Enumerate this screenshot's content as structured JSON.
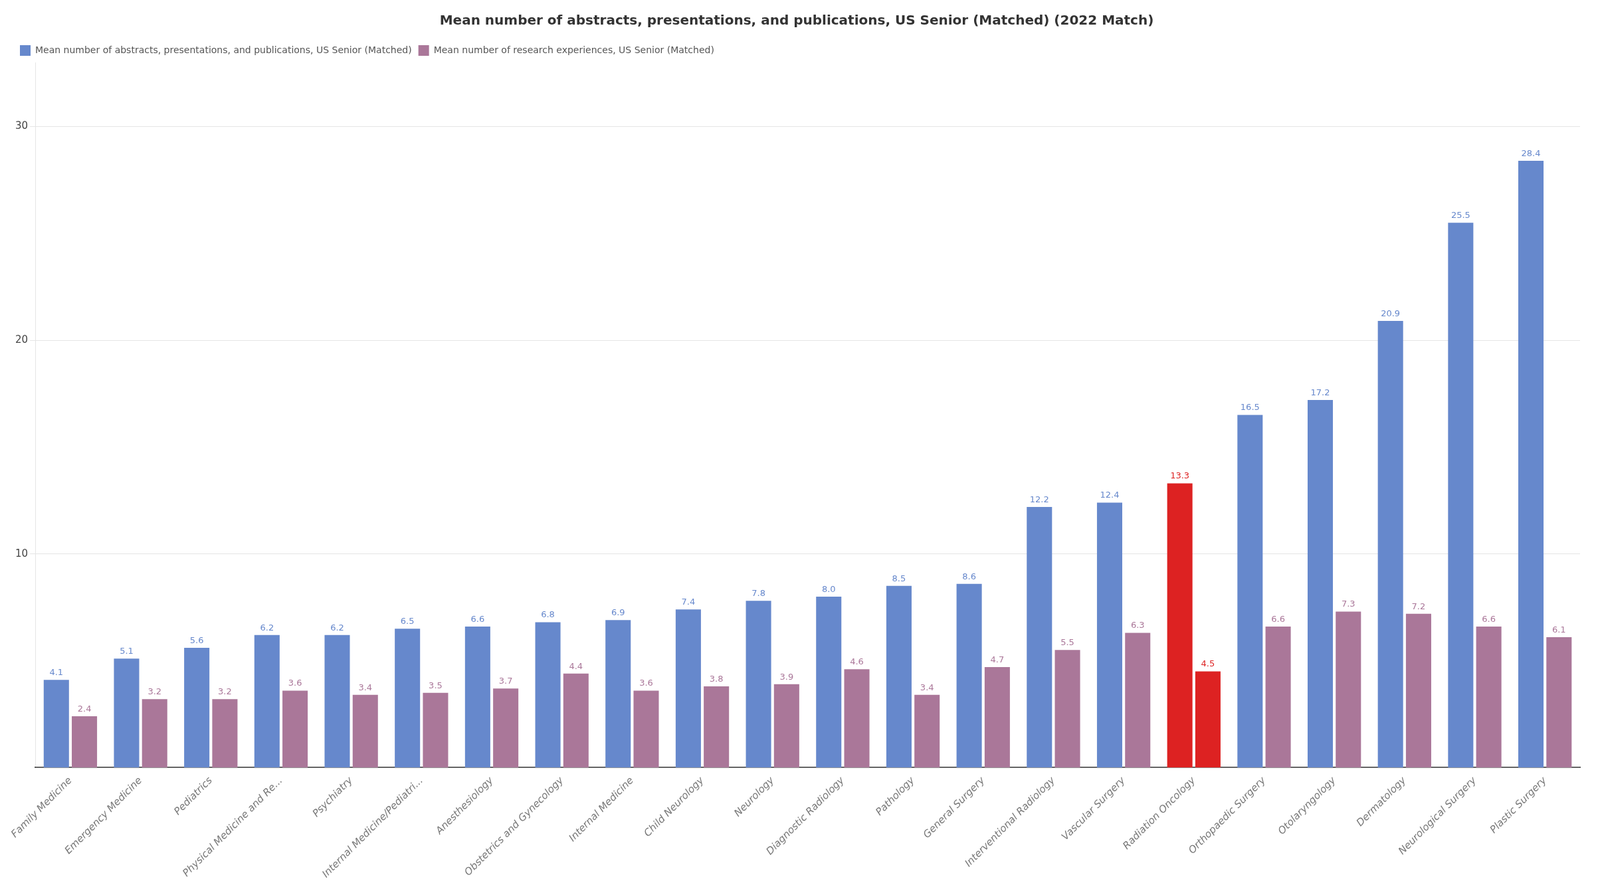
{
  "chart_data": {
    "type": "bar",
    "title": "Mean number of abstracts, presentations, and publications, US Senior (Matched) (2022 Match)",
    "categories": [
      "Family Medicine",
      "Emergency Medicine",
      "Pediatrics",
      "Physical Medicine and Re...",
      "Psychiatry",
      "Internal Medicine/Pediatri...",
      "Anesthesiology",
      "Obstetrics and Gynecology",
      "Internal Medicine",
      "Child Neurology",
      "Neurology",
      "Diagnostic Radiology",
      "Pathology",
      "General Surgery",
      "Interventional Radiology",
      "Vascular Surgery",
      "Radiation Oncology",
      "Orthopaedic Surgery",
      "Otolaryngology",
      "Dermatology",
      "Neurological Surgery",
      "Plastic Surgery"
    ],
    "series": [
      {
        "name": "Mean number of abstracts, presentations, and publications, US Senior (Matched)",
        "color": "#6688CC",
        "colors": [
          "#6688CC",
          "#6688CC",
          "#6688CC",
          "#6688CC",
          "#6688CC",
          "#6688CC",
          "#6688CC",
          "#6688CC",
          "#6688CC",
          "#6688CC",
          "#6688CC",
          "#6688CC",
          "#6688CC",
          "#6688CC",
          "#6688CC",
          "#6688CC",
          "#DD2222",
          "#6688CC",
          "#6688CC",
          "#6688CC",
          "#6688CC",
          "#6688CC"
        ],
        "values": [
          4.1,
          5.1,
          5.6,
          6.2,
          6.2,
          6.5,
          6.6,
          6.8,
          6.9,
          7.4,
          7.8,
          8.0,
          8.5,
          8.6,
          12.2,
          12.4,
          13.3,
          16.5,
          17.2,
          20.9,
          25.5,
          28.4
        ],
        "value_labels": [
          "4.1",
          "5.1",
          "5.6",
          "6.2",
          "6.2",
          "6.5",
          "6.6",
          "6.8",
          "6.9",
          "7.4",
          "7.8",
          "8.0",
          "8.5",
          "8.6",
          "12.2",
          "12.4",
          "13.3",
          "16.5",
          "17.2",
          "20.9",
          "25.5",
          "28.4"
        ]
      },
      {
        "name": "Mean number of research experiences, US Senior (Matched)",
        "color": "#AA7799",
        "colors": [
          "#AA7799",
          "#AA7799",
          "#AA7799",
          "#AA7799",
          "#AA7799",
          "#AA7799",
          "#AA7799",
          "#AA7799",
          "#AA7799",
          "#AA7799",
          "#AA7799",
          "#AA7799",
          "#AA7799",
          "#AA7799",
          "#AA7799",
          "#AA7799",
          "#DD2222",
          "#AA7799",
          "#AA7799",
          "#AA7799",
          "#AA7799",
          "#AA7799"
        ],
        "values": [
          2.4,
          3.2,
          3.2,
          3.6,
          3.4,
          3.5,
          3.7,
          4.4,
          3.6,
          3.8,
          3.9,
          4.6,
          3.4,
          4.7,
          5.5,
          6.3,
          4.5,
          6.6,
          7.3,
          7.2,
          6.6,
          6.1
        ]
      }
    ],
    "ylim": [
      0,
      33
    ],
    "yticks": [
      10,
      20,
      30
    ],
    "grid": true,
    "legend": "upper left",
    "data_labels": true
  }
}
